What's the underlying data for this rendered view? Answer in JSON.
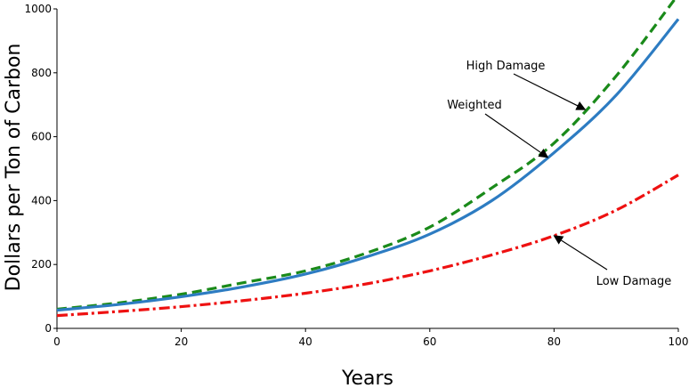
{
  "chart_data": {
    "type": "line",
    "title": "",
    "xlabel": "Years",
    "ylabel": "Dollars per Ton of Carbon",
    "xlim": [
      0,
      100
    ],
    "ylim": [
      0,
      1000
    ],
    "x_ticks": [
      "0",
      "20",
      "40",
      "60",
      "80",
      "100"
    ],
    "y_ticks": [
      "0",
      "200",
      "400",
      "600",
      "800",
      "1000"
    ],
    "grid": false,
    "x": [
      0,
      10,
      20,
      30,
      40,
      50,
      60,
      70,
      80,
      90,
      100
    ],
    "series": [
      {
        "name": "High Damage",
        "color": "#1a8a1a",
        "style": "dashed",
        "values": [
          60,
          80,
          107,
          143,
          180,
          237,
          317,
          440,
          580,
          790,
          1045
        ]
      },
      {
        "name": "Weighted",
        "color": "#2d7cc2",
        "style": "solid",
        "values": [
          57,
          75,
          99,
          130,
          170,
          225,
          295,
          400,
          550,
          730,
          968
        ]
      },
      {
        "name": "Low Damage",
        "color": "#ee1111",
        "style": "dash-dot",
        "values": [
          40,
          53,
          68,
          87,
          110,
          140,
          180,
          230,
          290,
          370,
          480
        ]
      }
    ],
    "annotations": [
      {
        "text": "High Damage",
        "series": 0,
        "x": 85
      },
      {
        "text": "Weighted",
        "series": 1,
        "x": 79
      },
      {
        "text": "Low Damage",
        "series": 2,
        "x": 80
      }
    ]
  }
}
